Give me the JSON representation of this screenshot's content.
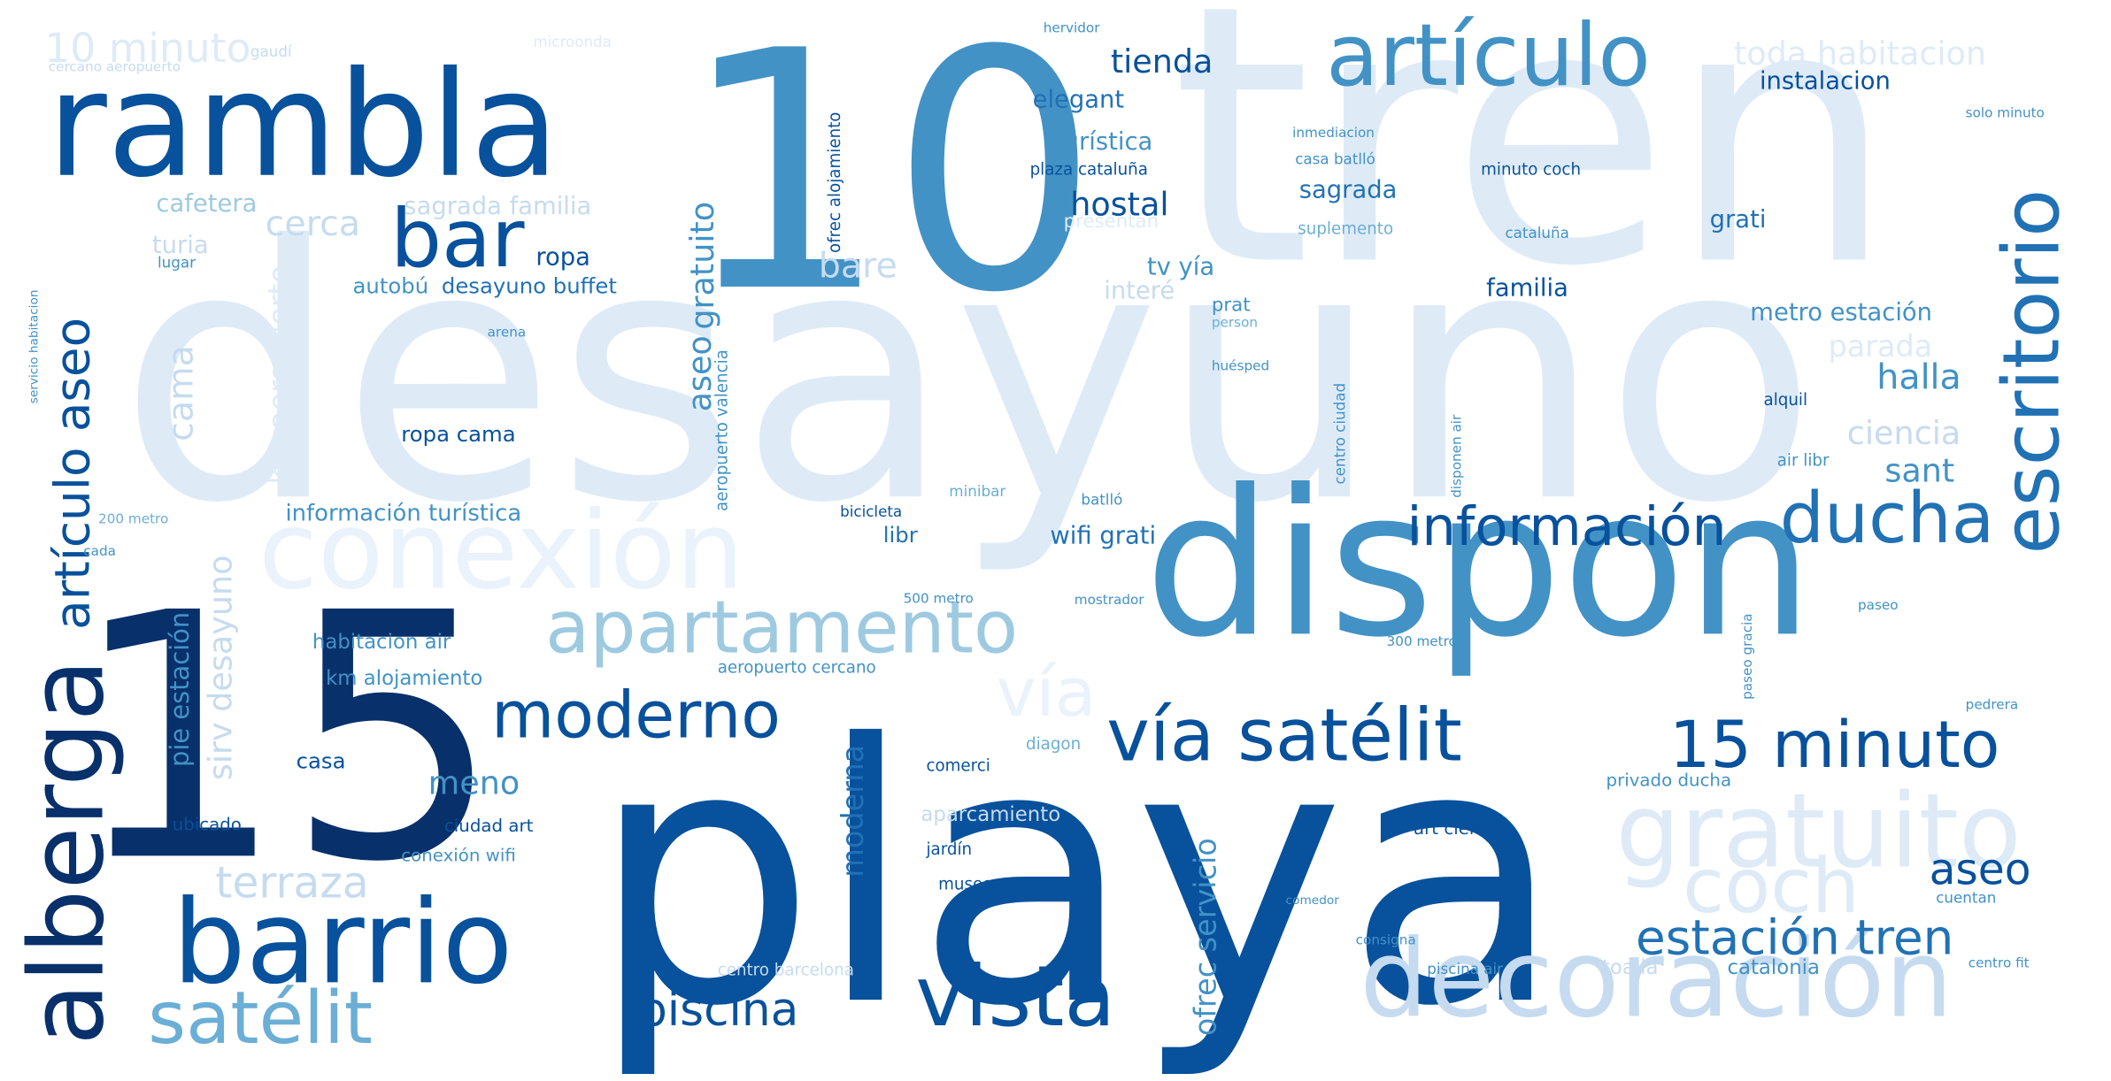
{
  "palette": {
    "darkest": "#08306b",
    "dark": "#08519c",
    "mid_dark": "#2171b5",
    "mid": "#4292c6",
    "mid_light": "#6baed6",
    "light": "#9ecae1",
    "lighter": "#c6dbef",
    "lightest": "#deebf7",
    "background": "#ffffff"
  },
  "words": [
    {
      "text": "desayuno",
      "weight": 1.0,
      "color": "#deebf7"
    },
    {
      "text": "tren",
      "weight": 0.98,
      "color": "#deebf7"
    },
    {
      "text": "playa",
      "weight": 0.95,
      "color": "#08519c"
    },
    {
      "text": "10",
      "weight": 0.93,
      "color": "#4292c6"
    },
    {
      "text": "15",
      "weight": 0.92,
      "color": "#08306b"
    },
    {
      "text": "dispon",
      "weight": 0.8,
      "color": "#4292c6"
    },
    {
      "text": "rambla",
      "weight": 0.55,
      "color": "#08519c"
    },
    {
      "text": "conexión",
      "weight": 0.42,
      "color": "#eaf2fb"
    },
    {
      "text": "barrio",
      "weight": 0.42,
      "color": "#08519c"
    },
    {
      "text": "decoración",
      "weight": 0.4,
      "color": "#c6dbef"
    },
    {
      "text": "alberga",
      "weight": 0.4,
      "color": "#08306b"
    },
    {
      "text": "artículo",
      "weight": 0.36,
      "color": "#4292c6"
    },
    {
      "text": "vista",
      "weight": 0.36,
      "color": "#08519c"
    },
    {
      "text": "gratuito",
      "weight": 0.36,
      "color": "#deebf7"
    },
    {
      "text": "coch",
      "weight": 0.32,
      "color": "#deebf7"
    },
    {
      "text": "escritorio",
      "weight": 0.32,
      "color": "#2171b5"
    },
    {
      "text": "bar",
      "weight": 0.32,
      "color": "#08519c"
    },
    {
      "text": "vía satélit",
      "weight": 0.3,
      "color": "#08519c"
    },
    {
      "text": "apartamento",
      "weight": 0.3,
      "color": "#9ecae1"
    },
    {
      "text": "satélit",
      "weight": 0.3,
      "color": "#6baed6"
    },
    {
      "text": "vía",
      "weight": 0.3,
      "color": "#eaf2fb"
    },
    {
      "text": "ducha",
      "weight": 0.28,
      "color": "#2171b5"
    },
    {
      "text": "15 minuto",
      "weight": 0.28,
      "color": "#08519c"
    },
    {
      "text": "moderno",
      "weight": 0.28,
      "color": "#08519c"
    },
    {
      "text": "artículo aseo",
      "weight": 0.26,
      "color": "#08519c"
    },
    {
      "text": "información",
      "weight": 0.24,
      "color": "#08519c"
    },
    {
      "text": "estación tren",
      "weight": 0.22,
      "color": "#2171b5"
    },
    {
      "text": "piscina",
      "weight": 0.22,
      "color": "#08519c"
    },
    {
      "text": "terraza",
      "weight": 0.2,
      "color": "#c6dbef"
    },
    {
      "text": "aseo",
      "weight": 0.2,
      "color": "#08519c"
    },
    {
      "text": "10 minuto",
      "weight": 0.16,
      "color": "#deebf7"
    },
    {
      "text": "toda habitacion",
      "weight": 0.14,
      "color": "#deebf7"
    },
    {
      "text": "tienda",
      "weight": 0.14,
      "color": "#08519c"
    },
    {
      "text": "hostal",
      "weight": 0.14,
      "color": "#08519c"
    },
    {
      "text": "gratuito",
      "weight": 0.14,
      "color": "#4292c6"
    },
    {
      "text": "aseo",
      "weight": 0.14,
      "color": "#4292c6"
    },
    {
      "text": "cerca",
      "weight": 0.14,
      "color": "#c6dbef"
    },
    {
      "text": "bare",
      "weight": 0.14,
      "color": "#c6dbef"
    },
    {
      "text": "halla",
      "weight": 0.14,
      "color": "#4292c6"
    },
    {
      "text": "parada",
      "weight": 0.14,
      "color": "#deebf7"
    },
    {
      "text": "ciencia",
      "weight": 0.14,
      "color": "#c6dbef"
    },
    {
      "text": "sant",
      "weight": 0.14,
      "color": "#4292c6"
    },
    {
      "text": "cama",
      "weight": 0.14,
      "color": "#c6dbef"
    },
    {
      "text": "sirv desayuno",
      "weight": 0.14,
      "color": "#c6dbef"
    },
    {
      "text": "km aeropuerto",
      "weight": 0.14,
      "color": "#deebf7"
    },
    {
      "text": "meno",
      "weight": 0.14,
      "color": "#4292c6"
    },
    {
      "text": "ofrec servicio",
      "weight": 0.14,
      "color": "#4292c6"
    },
    {
      "text": "moderna",
      "weight": 0.14,
      "color": "#2171b5"
    },
    {
      "text": "pie estación",
      "weight": 0.14,
      "color": "#4292c6"
    },
    {
      "text": "instalacion",
      "weight": 0.12,
      "color": "#08519c"
    },
    {
      "text": "elegant",
      "weight": 0.12,
      "color": "#2171b5"
    },
    {
      "text": "turística",
      "weight": 0.12,
      "color": "#4292c6"
    },
    {
      "text": "cafetera",
      "weight": 0.12,
      "color": "#9ecae1"
    },
    {
      "text": "sagrada familia",
      "weight": 0.12,
      "color": "#c6dbef"
    },
    {
      "text": "sagrada",
      "weight": 0.12,
      "color": "#2171b5"
    },
    {
      "text": "grati",
      "weight": 0.12,
      "color": "#2171b5"
    },
    {
      "text": "ropa",
      "weight": 0.12,
      "color": "#08519c"
    },
    {
      "text": "tv yía",
      "weight": 0.12,
      "color": "#4292c6"
    },
    {
      "text": "interé",
      "weight": 0.12,
      "color": "#c6dbef"
    },
    {
      "text": "turia",
      "weight": 0.12,
      "color": "#c6dbef"
    },
    {
      "text": "familia",
      "weight": 0.12,
      "color": "#08519c"
    },
    {
      "text": "metro estación",
      "weight": 0.12,
      "color": "#4292c6"
    },
    {
      "text": "autobú",
      "weight": 0.12,
      "color": "#4292c6"
    },
    {
      "text": "desayuno buffet",
      "weight": 0.12,
      "color": "#2171b5"
    },
    {
      "text": "ropa cama",
      "weight": 0.12,
      "color": "#08519c"
    },
    {
      "text": "información turística",
      "weight": 0.12,
      "color": "#4292c6"
    },
    {
      "text": "wifi grati",
      "weight": 0.12,
      "color": "#2171b5"
    },
    {
      "text": "libr",
      "weight": 0.12,
      "color": "#2171b5"
    },
    {
      "text": "presentan",
      "weight": 0.1,
      "color": "#deebf7"
    },
    {
      "text": "habitacion air",
      "weight": 0.1,
      "color": "#4292c6"
    },
    {
      "text": "km alojamiento",
      "weight": 0.1,
      "color": "#4292c6"
    },
    {
      "text": "casa",
      "weight": 0.1,
      "color": "#08519c"
    },
    {
      "text": "aparcamiento",
      "weight": 0.1,
      "color": "#c6dbef"
    },
    {
      "text": "privado ducha",
      "weight": 0.1,
      "color": "#4292c6"
    },
    {
      "text": "catalonia",
      "weight": 0.1,
      "color": "#4292c6"
    },
    {
      "text": "toalla",
      "weight": 0.1,
      "color": "#c6dbef"
    },
    {
      "text": "ciudad art",
      "weight": 0.09,
      "color": "#08519c"
    },
    {
      "text": "art ciencia",
      "weight": 0.09,
      "color": "#08519c"
    },
    {
      "text": "conexión wifi",
      "weight": 0.09,
      "color": "#4292c6"
    },
    {
      "text": "ubicado",
      "weight": 0.09,
      "color": "#08519c"
    },
    {
      "text": "centro barcelona",
      "weight": 0.09,
      "color": "#c6dbef"
    },
    {
      "text": "aeropuerto cercano",
      "weight": 0.09,
      "color": "#4292c6"
    },
    {
      "text": "diagon",
      "weight": 0.09,
      "color": "#6baed6"
    },
    {
      "text": "comerci",
      "weight": 0.09,
      "color": "#08519c"
    },
    {
      "text": "museo",
      "weight": 0.09,
      "color": "#08519c"
    },
    {
      "text": "jardín",
      "weight": 0.09,
      "color": "#08519c"
    },
    {
      "text": "plaza cataluña",
      "weight": 0.09,
      "color": "#08519c"
    },
    {
      "text": "minuto coch",
      "weight": 0.09,
      "color": "#08519c"
    },
    {
      "text": "casa batlló",
      "weight": 0.09,
      "color": "#4292c6"
    },
    {
      "text": "cataluña",
      "weight": 0.09,
      "color": "#4292c6"
    },
    {
      "text": "suplemento",
      "weight": 0.09,
      "color": "#6baed6"
    },
    {
      "text": "alquil",
      "weight": 0.09,
      "color": "#08519c"
    },
    {
      "text": "air libr",
      "weight": 0.09,
      "color": "#4292c6"
    },
    {
      "text": "cuentan",
      "weight": 0.09,
      "color": "#4292c6"
    },
    {
      "text": "piscina air",
      "weight": 0.08,
      "color": "#4292c6"
    },
    {
      "text": "gaudí",
      "weight": 0.08,
      "color": "#c6dbef"
    },
    {
      "text": "microonda",
      "weight": 0.08,
      "color": "#deebf7"
    },
    {
      "text": "cercano aeropuerto",
      "weight": 0.08,
      "color": "#c6dbef"
    },
    {
      "text": "lugar",
      "weight": 0.08,
      "color": "#4292c6"
    },
    {
      "text": "arena",
      "weight": 0.08,
      "color": "#4292c6"
    },
    {
      "text": "cada",
      "weight": 0.08,
      "color": "#4292c6"
    },
    {
      "text": "200 metro",
      "weight": 0.08,
      "color": "#6baed6"
    },
    {
      "text": "bicicleta",
      "weight": 0.08,
      "color": "#08519c"
    },
    {
      "text": "minibar",
      "weight": 0.08,
      "color": "#6baed6"
    },
    {
      "text": "batlló",
      "weight": 0.08,
      "color": "#4292c6"
    },
    {
      "text": "mostrador",
      "weight": 0.08,
      "color": "#4292c6"
    },
    {
      "text": "500 metro",
      "weight": 0.08,
      "color": "#4292c6"
    },
    {
      "text": "300 metro",
      "weight": 0.08,
      "color": "#4292c6"
    },
    {
      "text": "hervidor",
      "weight": 0.08,
      "color": "#4292c6"
    },
    {
      "text": "solo minuto",
      "weight": 0.08,
      "color": "#4292c6"
    },
    {
      "text": "inmediacion",
      "weight": 0.08,
      "color": "#4292c6"
    },
    {
      "text": "huésped",
      "weight": 0.08,
      "color": "#4292c6"
    },
    {
      "text": "prat",
      "weight": 0.08,
      "color": "#4292c6"
    },
    {
      "text": "person",
      "weight": 0.08,
      "color": "#6baed6"
    },
    {
      "text": "paseo",
      "weight": 0.08,
      "color": "#4292c6"
    },
    {
      "text": "pedrera",
      "weight": 0.08,
      "color": "#4292c6"
    },
    {
      "text": "consigna",
      "weight": 0.08,
      "color": "#4292c6"
    },
    {
      "text": "comedor",
      "weight": 0.08,
      "color": "#4292c6"
    },
    {
      "text": "centro fit",
      "weight": 0.08,
      "color": "#4292c6"
    },
    {
      "text": "ofrec alojamiento",
      "weight": 0.08,
      "color": "#08519c"
    },
    {
      "text": "aeropuerto valencia",
      "weight": 0.08,
      "color": "#4292c6"
    },
    {
      "text": "servicio habitacion",
      "weight": 0.08,
      "color": "#4292c6"
    },
    {
      "text": "centro ciudad",
      "weight": 0.08,
      "color": "#4292c6"
    },
    {
      "text": "disponen air",
      "weight": 0.08,
      "color": "#4292c6"
    },
    {
      "text": "barcelona prat",
      "weight": 0.08,
      "color": "#4292c6"
    },
    {
      "text": "paseo gracia",
      "weight": 0.08,
      "color": "#4292c6"
    }
  ]
}
